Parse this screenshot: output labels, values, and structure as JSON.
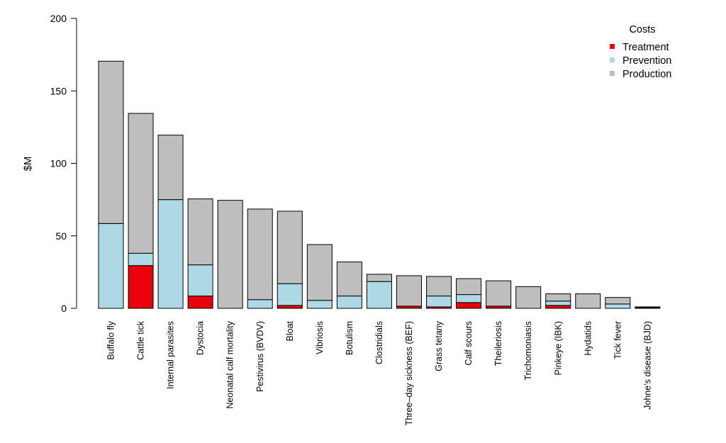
{
  "chart_data": {
    "type": "bar",
    "stacked": true,
    "ylabel": "$M",
    "ylim": [
      0,
      200
    ],
    "yticks": [
      0,
      50,
      100,
      150,
      200
    ],
    "legend": {
      "title": "Costs",
      "placement": "top-right",
      "entries": [
        {
          "name": "Treatment",
          "color": "#e8000b"
        },
        {
          "name": "Prevention",
          "color": "#add8e6"
        },
        {
          "name": "Production",
          "color": "#bebebe"
        }
      ]
    },
    "categories": [
      "Buffalo fly",
      "Cattle tick",
      "Internal parasites",
      "Dystocia",
      "Neonatal calf mortality",
      "Pestivirus (BVDV)",
      "Bloat",
      "Vibriosis",
      "Botulism",
      "Clostridials",
      "Three–day sickness (BEF)",
      "Grass tetany",
      "Calf scours",
      "Theileriosis",
      "Trichomoniasis",
      "Pinkeye (IBK)",
      "Hydatids",
      "Tick fever",
      "Johne’s disease (BJD)"
    ],
    "series": [
      {
        "name": "Treatment",
        "color": "#e8000b",
        "values": [
          0,
          29.5,
          0,
          8.5,
          0,
          0,
          2,
          0,
          0,
          0,
          1.5,
          1,
          4,
          1.5,
          0,
          2,
          0,
          0,
          0.5
        ]
      },
      {
        "name": "Prevention",
        "color": "#add8e6",
        "values": [
          58.5,
          8.5,
          75,
          21.5,
          0,
          6,
          15,
          5.5,
          8.5,
          18.5,
          0,
          7.5,
          5.5,
          0,
          0,
          3,
          0,
          3,
          0
        ]
      },
      {
        "name": "Production",
        "color": "#bebebe",
        "values": [
          112,
          96.5,
          44.5,
          45.5,
          74.5,
          62.5,
          50,
          38.5,
          23.5,
          5,
          21,
          13.5,
          11,
          17.5,
          15,
          5,
          10,
          4.5,
          0.5
        ]
      }
    ]
  }
}
